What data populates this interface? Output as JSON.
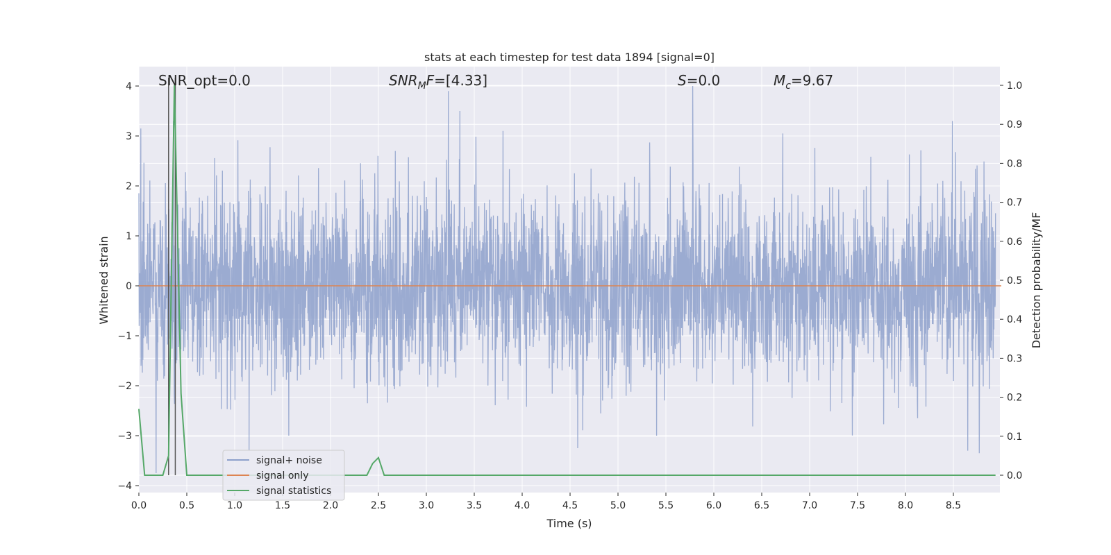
{
  "chart_data": {
    "type": "line",
    "title": "stats at each timestep for test data 1894 [signal=0]",
    "xlabel": "Time (s)",
    "ylabel": "Whitened strain",
    "y2label": "Detection probability/MF",
    "xlim": [
      0.0,
      9.0
    ],
    "ylim": [
      -4.2,
      4.4
    ],
    "y2lim": [
      -0.04,
      1.04
    ],
    "xticks": [
      "0.0",
      "0.5",
      "1.0",
      "1.5",
      "2.0",
      "2.5",
      "3.0",
      "3.5",
      "4.0",
      "4.5",
      "5.0",
      "5.5",
      "6.0",
      "6.5",
      "7.0",
      "7.5",
      "8.0",
      "8.5"
    ],
    "yticks": [
      "4",
      "3",
      "2",
      "1",
      "0",
      "−1",
      "−2",
      "−3",
      "−4"
    ],
    "y2ticks": [
      "1.0",
      "0.9",
      "0.8",
      "0.7",
      "0.6",
      "0.5",
      "0.4",
      "0.3",
      "0.2",
      "0.1",
      "0.0"
    ],
    "grid": true,
    "legend_position": "lower-left",
    "annotations": {
      "snr_opt": "SNR_opt=0.0",
      "snr_mf_prefix": "SNR",
      "snr_mf_sub": "M",
      "snr_mf_mid": "F",
      "snr_mf_value": "=[4.33]",
      "s_label": "S",
      "s_value": "=0.0",
      "mc_label": "M",
      "mc_sub": "c",
      "mc_value": "=9.67"
    },
    "vertical_lines_x": [
      0.31,
      0.38
    ],
    "series": [
      {
        "name": "signal+ noise",
        "color": "#8da0cb",
        "axis": "left",
        "description_level": "whitened noise, range approximately -3.3 to 4.0",
        "notable_peaks": [
          [
            0.02,
            3.15
          ],
          [
            0.36,
            3.3
          ],
          [
            3.23,
            3.9
          ],
          [
            3.35,
            3.5
          ],
          [
            3.8,
            3.1
          ],
          [
            4.58,
            3.15
          ],
          [
            5.78,
            4.0
          ],
          [
            6.72,
            3.05
          ],
          [
            8.49,
            3.3
          ],
          [
            0.18,
            -3.75
          ],
          [
            1.15,
            -3.3
          ],
          [
            4.58,
            -3.25
          ],
          [
            8.65,
            -3.3
          ],
          [
            8.77,
            -3.35
          ]
        ]
      },
      {
        "name": "signal only",
        "color": "#dd8452",
        "axis": "left",
        "x": [
          0.0,
          9.0
        ],
        "values": [
          0.0,
          0.0
        ]
      },
      {
        "name": "signal statistics",
        "color": "#55a868",
        "axis": "right",
        "x": [
          0.0,
          0.06,
          0.12,
          0.25,
          0.31,
          0.37,
          0.44,
          0.5,
          2.38,
          2.44,
          2.5,
          2.56,
          8.94
        ],
        "values": [
          0.17,
          0.0,
          0.0,
          0.0,
          0.05,
          1.0,
          0.21,
          0.0,
          0.0,
          0.03,
          0.045,
          0.0,
          0.0
        ]
      }
    ]
  }
}
